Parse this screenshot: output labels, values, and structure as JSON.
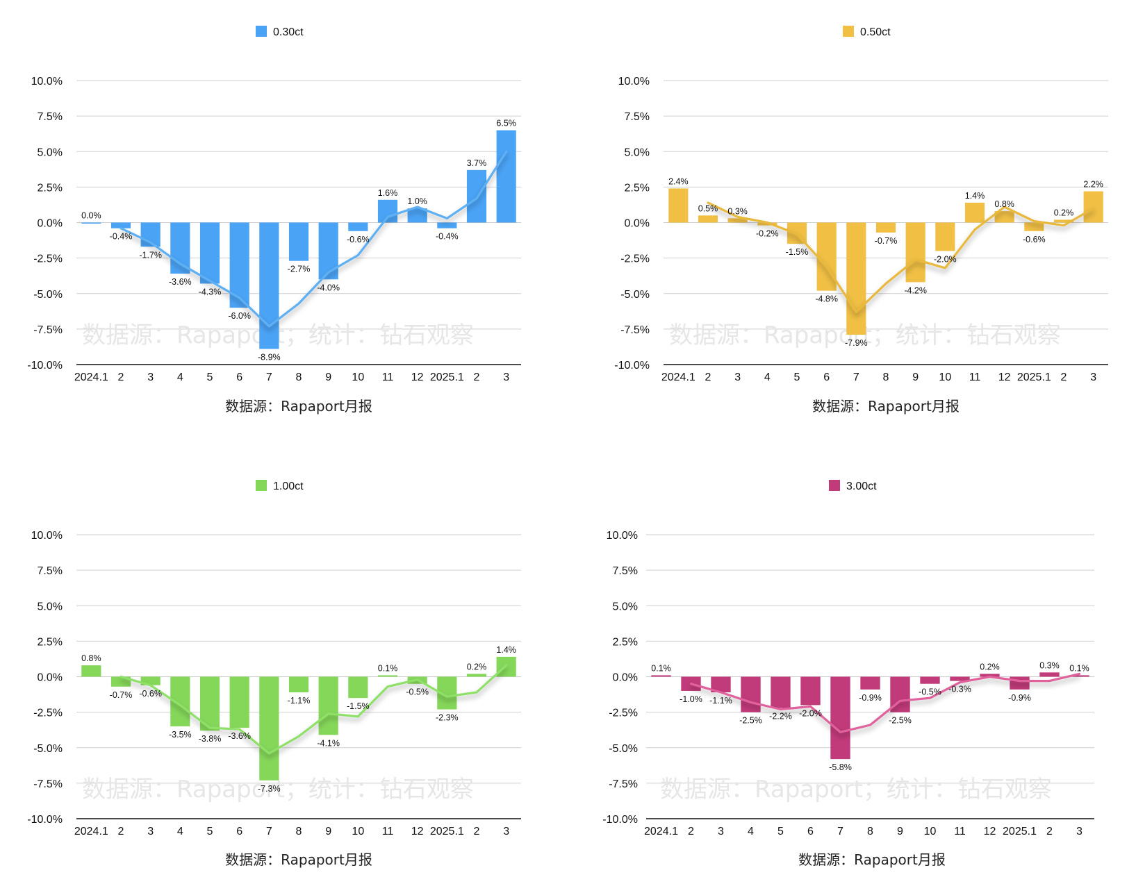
{
  "chart_data": [
    {
      "type": "bar",
      "series_name": "0.30ct",
      "color": "#4aa3f5",
      "line_color": "#5fb0f2",
      "categories": [
        "2024.1",
        "2",
        "3",
        "4",
        "5",
        "6",
        "7",
        "8",
        "9",
        "10",
        "11",
        "12",
        "2025.1",
        "2",
        "3"
      ],
      "values": [
        0.0,
        -0.4,
        -1.7,
        -3.6,
        -4.3,
        -6.0,
        -8.9,
        -2.7,
        -4.0,
        -0.6,
        1.6,
        1.0,
        -0.4,
        3.7,
        6.5
      ],
      "value_labels": [
        "0.0%",
        "-0.4%",
        "-1.7%",
        "-3.6%",
        "-4.3%",
        "-6.0%",
        "-8.9%",
        "-2.7%",
        "-4.0%",
        "-0.6%",
        "1.6%",
        "1.0%",
        "-0.4%",
        "3.7%",
        "6.5%"
      ],
      "trendline": [
        null,
        -0.4,
        -1.4,
        -2.9,
        -4.1,
        -5.3,
        -7.3,
        -5.7,
        -3.5,
        -2.3,
        0.4,
        1.1,
        0.3,
        1.7,
        5.0
      ],
      "yticks": [
        "10.0%",
        "7.5%",
        "5.0%",
        "2.5%",
        "0.0%",
        "-2.5%",
        "-5.0%",
        "-7.5%",
        "-10.0%"
      ],
      "ylim": [
        -10,
        10
      ],
      "source": "数据源：Rapaport月报",
      "watermark": "数据源：Rapaport；统计：钻石观察"
    },
    {
      "type": "bar",
      "series_name": "0.50ct",
      "color": "#f0bf44",
      "line_color": "#e8b93e",
      "categories": [
        "2024.1",
        "2",
        "3",
        "4",
        "5",
        "6",
        "7",
        "8",
        "9",
        "10",
        "11",
        "12",
        "2025.1",
        "2",
        "3"
      ],
      "values": [
        2.4,
        0.5,
        0.3,
        -0.2,
        -1.5,
        -4.8,
        -7.9,
        -0.7,
        -4.2,
        -2.0,
        1.4,
        0.8,
        -0.6,
        0.2,
        2.2
      ],
      "value_labels": [
        "2.4%",
        "0.5%",
        "0.3%",
        "-0.2%",
        "-1.5%",
        "-4.8%",
        "-7.9%",
        "-0.7%",
        "-4.2%",
        "-2.0%",
        "1.4%",
        "0.8%",
        "-0.6%",
        "0.2%",
        "2.2%"
      ],
      "trendline": [
        null,
        1.4,
        0.4,
        0.0,
        -0.8,
        -3.1,
        -6.3,
        -4.3,
        -2.6,
        -3.2,
        -0.5,
        1.1,
        0.1,
        -0.2,
        1.0
      ],
      "yticks": [
        "10.0%",
        "7.5%",
        "5.0%",
        "2.5%",
        "0.0%",
        "-2.5%",
        "-5.0%",
        "-7.5%",
        "-10.0%"
      ],
      "ylim": [
        -10,
        10
      ],
      "source": "数据源：Rapaport月报",
      "watermark": "数据源：Rapaport；统计：钻石观察"
    },
    {
      "type": "bar",
      "series_name": "1.00ct",
      "color": "#85d75a",
      "line_color": "#8ee068",
      "categories": [
        "2024.1",
        "2",
        "3",
        "4",
        "5",
        "6",
        "7",
        "8",
        "9",
        "10",
        "11",
        "12",
        "2025.1",
        "2",
        "3"
      ],
      "values": [
        0.8,
        -0.7,
        -0.6,
        -3.5,
        -3.8,
        -3.6,
        -7.3,
        -1.1,
        -4.1,
        -1.5,
        0.1,
        -0.5,
        -2.3,
        0.2,
        1.4
      ],
      "value_labels": [
        "0.8%",
        "-0.7%",
        "-0.6%",
        "-3.5%",
        "-3.8%",
        "-3.6%",
        "-7.3%",
        "-1.1%",
        "-4.1%",
        "-1.5%",
        "0.1%",
        "-0.5%",
        "-2.3%",
        "0.2%",
        "1.4%"
      ],
      "trendline": [
        null,
        0.0,
        -0.6,
        -2.0,
        -3.6,
        -3.7,
        -5.4,
        -4.2,
        -2.6,
        -2.8,
        -0.7,
        -0.2,
        -1.4,
        -1.1,
        0.8
      ],
      "yticks": [
        "10.0%",
        "7.5%",
        "5.0%",
        "2.5%",
        "0.0%",
        "-2.5%",
        "-5.0%",
        "-7.5%",
        "-10.0%"
      ],
      "ylim": [
        -10,
        10
      ],
      "source": "数据源：Rapaport月报",
      "watermark": "数据源：Rapaport；统计：钻石观察"
    },
    {
      "type": "bar",
      "series_name": "3.00ct",
      "color": "#c13a7a",
      "line_color": "#e0629c",
      "categories": [
        "2024.1",
        "2",
        "3",
        "4",
        "5",
        "6",
        "7",
        "8",
        "9",
        "10",
        "11",
        "12",
        "2025.1",
        "2",
        "3"
      ],
      "values": [
        0.1,
        -1.0,
        -1.1,
        -2.5,
        -2.2,
        -2.0,
        -5.8,
        -0.9,
        -2.5,
        -0.5,
        -0.3,
        0.2,
        -0.9,
        0.3,
        0.1
      ],
      "value_labels": [
        "0.1%",
        "-1.0%",
        "-1.1%",
        "-2.5%",
        "-2.2%",
        "-2.0%",
        "-5.8%",
        "-0.9%",
        "-2.5%",
        "-0.5%",
        "-0.3%",
        "0.2%",
        "-0.9%",
        "0.3%",
        "0.1%"
      ],
      "trendline": [
        null,
        -0.5,
        -1.1,
        -1.8,
        -2.3,
        -2.1,
        -3.9,
        -3.4,
        -1.7,
        -1.5,
        -0.4,
        0.0,
        -0.3,
        -0.3,
        0.2
      ],
      "yticks": [
        "10.0%",
        "7.5%",
        "5.0%",
        "2.5%",
        "0.0%",
        "-2.5%",
        "-5.0%",
        "-7.5%",
        "-10.0%"
      ],
      "ylim": [
        -10,
        10
      ],
      "source": "数据源：Rapaport月报",
      "watermark": "数据源：Rapaport；统计：钻石观察"
    }
  ]
}
